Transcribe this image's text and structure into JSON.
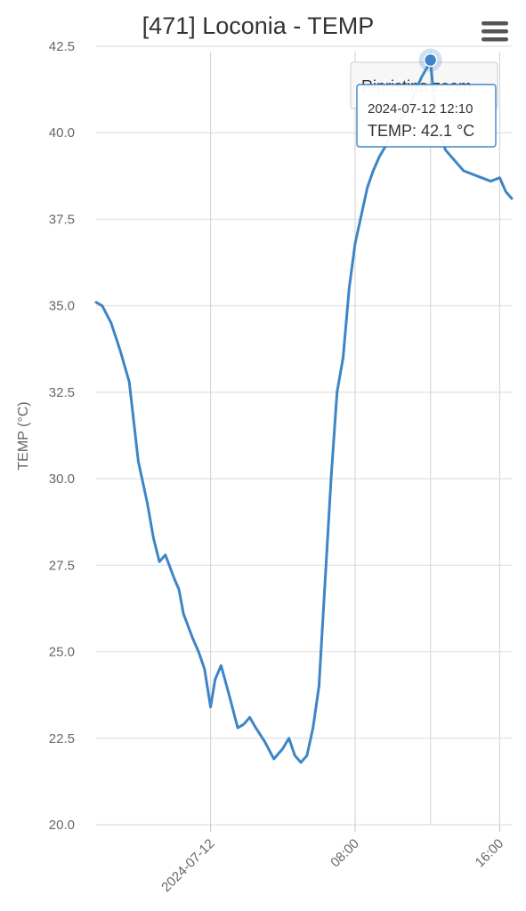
{
  "colors": {
    "series": "#3d85c6",
    "grid": "#e0e0e0",
    "menu": "#555555"
  },
  "header": {
    "title": "[471] Loconia - TEMP",
    "menu_icon": "hamburger-menu-icon"
  },
  "reset_zoom_label": "Ripristina zoom",
  "tooltip": {
    "date": "2024-07-12 12:10",
    "text": "TEMP: 42.1 °C"
  },
  "chart_data": {
    "type": "line",
    "title": "[471] Loconia - TEMP",
    "ylabel": "TEMP (°C)",
    "xlabel": "",
    "ylim": [
      20,
      42.5
    ],
    "y_ticks": [
      "20.0",
      "22.5",
      "25.0",
      "27.5",
      "30.0",
      "32.5",
      "35.0",
      "37.5",
      "40.0",
      "42.5"
    ],
    "x_ticks": [
      {
        "label": "2024-07-12",
        "t": "2024-07-12 00:00"
      },
      {
        "label": "08:00",
        "t": "2024-07-12 08:00"
      },
      {
        "label": "16:00",
        "t": "2024-07-12 16:00"
      }
    ],
    "xlim": [
      "2024-07-11 17:40",
      "2024-07-12 16:40"
    ],
    "grid": true,
    "series": [
      {
        "x": [
          "2024-07-11 17:40",
          "2024-07-11 18:00",
          "2024-07-11 18:30",
          "2024-07-11 19:00",
          "2024-07-11 19:30",
          "2024-07-11 20:00",
          "2024-07-11 20:30",
          "2024-07-11 20:50",
          "2024-07-11 21:10",
          "2024-07-11 21:30",
          "2024-07-11 22:00",
          "2024-07-11 22:15",
          "2024-07-11 22:30",
          "2024-07-11 23:00",
          "2024-07-11 23:20",
          "2024-07-11 23:40",
          "2024-07-12 00:00",
          "2024-07-12 00:15",
          "2024-07-12 00:35",
          "2024-07-12 01:00",
          "2024-07-12 01:30",
          "2024-07-12 01:50",
          "2024-07-12 02:10",
          "2024-07-12 02:30",
          "2024-07-12 03:00",
          "2024-07-12 03:30",
          "2024-07-12 04:00",
          "2024-07-12 04:20",
          "2024-07-12 04:40",
          "2024-07-12 05:00",
          "2024-07-12 05:20",
          "2024-07-12 05:40",
          "2024-07-12 06:00",
          "2024-07-12 06:20",
          "2024-07-12 06:40",
          "2024-07-12 07:00",
          "2024-07-12 07:20",
          "2024-07-12 07:40",
          "2024-07-12 08:00",
          "2024-07-12 08:20",
          "2024-07-12 08:40",
          "2024-07-12 09:00",
          "2024-07-12 09:20",
          "2024-07-12 09:40",
          "2024-07-12 10:00",
          "2024-07-12 10:20",
          "2024-07-12 10:40",
          "2024-07-12 11:00",
          "2024-07-12 11:20",
          "2024-07-12 11:40",
          "2024-07-12 12:00",
          "2024-07-12 12:10",
          "2024-07-12 12:30",
          "2024-07-12 13:00",
          "2024-07-12 13:30",
          "2024-07-12 14:00",
          "2024-07-12 14:30",
          "2024-07-12 15:00",
          "2024-07-12 15:30",
          "2024-07-12 16:00",
          "2024-07-12 16:20",
          "2024-07-12 16:40"
        ],
        "values": [
          35.1,
          35.0,
          34.5,
          33.7,
          32.8,
          30.5,
          29.3,
          28.3,
          27.6,
          27.8,
          27.1,
          26.8,
          26.1,
          25.4,
          25.0,
          24.5,
          23.4,
          24.2,
          24.6,
          23.8,
          22.8,
          22.9,
          23.1,
          22.8,
          22.4,
          21.9,
          22.2,
          22.5,
          22.0,
          21.8,
          22.0,
          22.8,
          24.0,
          27.0,
          30.0,
          32.5,
          33.5,
          35.5,
          36.8,
          37.6,
          38.4,
          38.9,
          39.3,
          39.6,
          40.0,
          40.2,
          40.5,
          40.8,
          41.2,
          41.6,
          41.9,
          42.1,
          40.2,
          39.5,
          39.2,
          38.9,
          38.8,
          38.7,
          38.6,
          38.7,
          38.3,
          38.1
        ]
      }
    ]
  }
}
